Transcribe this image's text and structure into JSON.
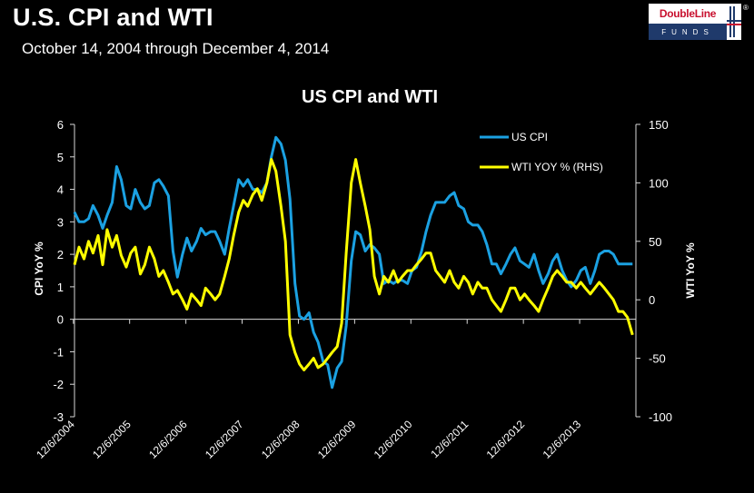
{
  "header": {
    "title": "U.S. CPI and WTI",
    "subtitle": "October 14, 2004 through December 4, 2014"
  },
  "logo": {
    "name": "DoubleLine",
    "tagline": "FUNDS",
    "reg_mark": "®",
    "colors": {
      "red": "#c8102e",
      "navy": "#1f3a6b"
    }
  },
  "chart_data": {
    "type": "line",
    "title": "US CPI and WTI",
    "ylabel": "CPI YoY %",
    "y2label": "WTI YoY %",
    "ylim": [
      -3,
      6
    ],
    "y2lim": [
      -100,
      150
    ],
    "yticks": [
      -3,
      -2,
      -1,
      0,
      1,
      2,
      3,
      4,
      5,
      6
    ],
    "y2ticks": [
      -100,
      -50,
      0,
      50,
      100,
      150
    ],
    "xrange": [
      2004.95,
      2014.93
    ],
    "xticks": [
      "12/6/2004",
      "12/6/2005",
      "12/6/2006",
      "12/6/2007",
      "12/6/2008",
      "12/6/2009",
      "12/6/2010",
      "12/6/2011",
      "12/6/2012",
      "12/6/2013"
    ],
    "legend_position": "top-right",
    "series": [
      {
        "name": "US CPI",
        "axis": "left",
        "color": "#1ba1e2",
        "x": [
          2004.95,
          2005.03,
          2005.12,
          2005.2,
          2005.28,
          2005.37,
          2005.45,
          2005.53,
          2005.62,
          2005.7,
          2005.78,
          2005.87,
          2005.95,
          2006.03,
          2006.12,
          2006.2,
          2006.28,
          2006.37,
          2006.45,
          2006.53,
          2006.62,
          2006.7,
          2006.78,
          2006.87,
          2006.95,
          2007.03,
          2007.12,
          2007.2,
          2007.28,
          2007.37,
          2007.45,
          2007.53,
          2007.62,
          2007.7,
          2007.78,
          2007.87,
          2007.95,
          2008.03,
          2008.12,
          2008.2,
          2008.28,
          2008.37,
          2008.45,
          2008.53,
          2008.62,
          2008.7,
          2008.78,
          2008.87,
          2008.95,
          2009.03,
          2009.12,
          2009.2,
          2009.28,
          2009.37,
          2009.45,
          2009.53,
          2009.62,
          2009.7,
          2009.78,
          2009.87,
          2009.95,
          2010.03,
          2010.12,
          2010.2,
          2010.28,
          2010.37,
          2010.45,
          2010.53,
          2010.62,
          2010.7,
          2010.78,
          2010.87,
          2010.95,
          2011.03,
          2011.12,
          2011.2,
          2011.28,
          2011.37,
          2011.45,
          2011.53,
          2011.62,
          2011.7,
          2011.78,
          2011.87,
          2011.95,
          2012.03,
          2012.12,
          2012.2,
          2012.28,
          2012.37,
          2012.45,
          2012.53,
          2012.62,
          2012.7,
          2012.78,
          2012.87,
          2012.95,
          2013.03,
          2013.12,
          2013.2,
          2013.28,
          2013.37,
          2013.45,
          2013.53,
          2013.62,
          2013.7,
          2013.78,
          2013.87,
          2013.95,
          2014.03,
          2014.12,
          2014.2,
          2014.28,
          2014.37,
          2014.45,
          2014.53,
          2014.62,
          2014.7,
          2014.78,
          2014.87
        ],
        "values": [
          3.3,
          3.0,
          3.0,
          3.1,
          3.5,
          3.2,
          2.8,
          3.2,
          3.6,
          4.7,
          4.3,
          3.5,
          3.4,
          4.0,
          3.6,
          3.4,
          3.5,
          4.2,
          4.3,
          4.1,
          3.8,
          2.1,
          1.3,
          2.0,
          2.5,
          2.1,
          2.4,
          2.8,
          2.6,
          2.7,
          2.7,
          2.4,
          2.0,
          2.8,
          3.5,
          4.3,
          4.1,
          4.3,
          4.0,
          4.0,
          3.9,
          4.2,
          5.0,
          5.6,
          5.4,
          4.9,
          3.7,
          1.1,
          0.1,
          0.0,
          0.2,
          -0.4,
          -0.7,
          -1.3,
          -1.4,
          -2.1,
          -1.5,
          -1.3,
          -0.2,
          1.8,
          2.7,
          2.6,
          2.1,
          2.3,
          2.2,
          2.0,
          1.1,
          1.2,
          1.1,
          1.2,
          1.2,
          1.1,
          1.5,
          1.6,
          2.1,
          2.7,
          3.2,
          3.6,
          3.6,
          3.6,
          3.8,
          3.9,
          3.5,
          3.4,
          3.0,
          2.9,
          2.9,
          2.7,
          2.3,
          1.7,
          1.7,
          1.4,
          1.7,
          2.0,
          2.2,
          1.8,
          1.7,
          1.6,
          2.0,
          1.5,
          1.1,
          1.4,
          1.8,
          2.0,
          1.5,
          1.2,
          1.0,
          1.2,
          1.5,
          1.6,
          1.1,
          1.5,
          2.0,
          2.1,
          2.1,
          2.0,
          1.7,
          1.7,
          1.7,
          1.7
        ]
      },
      {
        "name": "WTI YOY % (RHS)",
        "axis": "right",
        "color": "#ffff00",
        "x": [
          2004.95,
          2005.03,
          2005.12,
          2005.2,
          2005.28,
          2005.37,
          2005.45,
          2005.53,
          2005.62,
          2005.7,
          2005.78,
          2005.87,
          2005.95,
          2006.03,
          2006.12,
          2006.2,
          2006.28,
          2006.37,
          2006.45,
          2006.53,
          2006.62,
          2006.7,
          2006.78,
          2006.87,
          2006.95,
          2007.03,
          2007.12,
          2007.2,
          2007.28,
          2007.37,
          2007.45,
          2007.53,
          2007.62,
          2007.7,
          2007.78,
          2007.87,
          2007.95,
          2008.03,
          2008.12,
          2008.2,
          2008.28,
          2008.37,
          2008.45,
          2008.53,
          2008.62,
          2008.7,
          2008.78,
          2008.87,
          2008.95,
          2009.03,
          2009.12,
          2009.2,
          2009.28,
          2009.37,
          2009.45,
          2009.53,
          2009.62,
          2009.7,
          2009.78,
          2009.87,
          2009.95,
          2010.03,
          2010.12,
          2010.2,
          2010.28,
          2010.37,
          2010.45,
          2010.53,
          2010.62,
          2010.7,
          2010.78,
          2010.87,
          2010.95,
          2011.03,
          2011.12,
          2011.2,
          2011.28,
          2011.37,
          2011.45,
          2011.53,
          2011.62,
          2011.7,
          2011.78,
          2011.87,
          2011.95,
          2012.03,
          2012.12,
          2012.2,
          2012.28,
          2012.37,
          2012.45,
          2012.53,
          2012.62,
          2012.7,
          2012.78,
          2012.87,
          2012.95,
          2013.03,
          2013.12,
          2013.2,
          2013.28,
          2013.37,
          2013.45,
          2013.53,
          2013.62,
          2013.7,
          2013.78,
          2013.87,
          2013.95,
          2014.03,
          2014.12,
          2014.2,
          2014.28,
          2014.37,
          2014.45,
          2014.53,
          2014.62,
          2014.7,
          2014.78,
          2014.87
        ],
        "values": [
          30,
          45,
          35,
          50,
          40,
          55,
          30,
          60,
          45,
          55,
          38,
          28,
          40,
          45,
          22,
          30,
          45,
          35,
          20,
          25,
          15,
          5,
          8,
          0,
          -8,
          5,
          0,
          -5,
          10,
          5,
          0,
          5,
          20,
          35,
          55,
          75,
          85,
          80,
          90,
          95,
          85,
          100,
          120,
          110,
          80,
          50,
          -30,
          -45,
          -55,
          -60,
          -55,
          -50,
          -58,
          -55,
          -50,
          -45,
          -40,
          -20,
          40,
          100,
          120,
          100,
          80,
          60,
          20,
          5,
          20,
          15,
          25,
          15,
          20,
          25,
          25,
          30,
          35,
          40,
          40,
          25,
          20,
          15,
          25,
          15,
          10,
          20,
          15,
          5,
          15,
          10,
          10,
          0,
          -5,
          -10,
          0,
          10,
          10,
          0,
          5,
          0,
          -5,
          -10,
          0,
          10,
          20,
          25,
          20,
          15,
          15,
          10,
          15,
          10,
          5,
          10,
          15,
          10,
          5,
          0,
          -10,
          -10,
          -15,
          -30
        ]
      }
    ]
  }
}
